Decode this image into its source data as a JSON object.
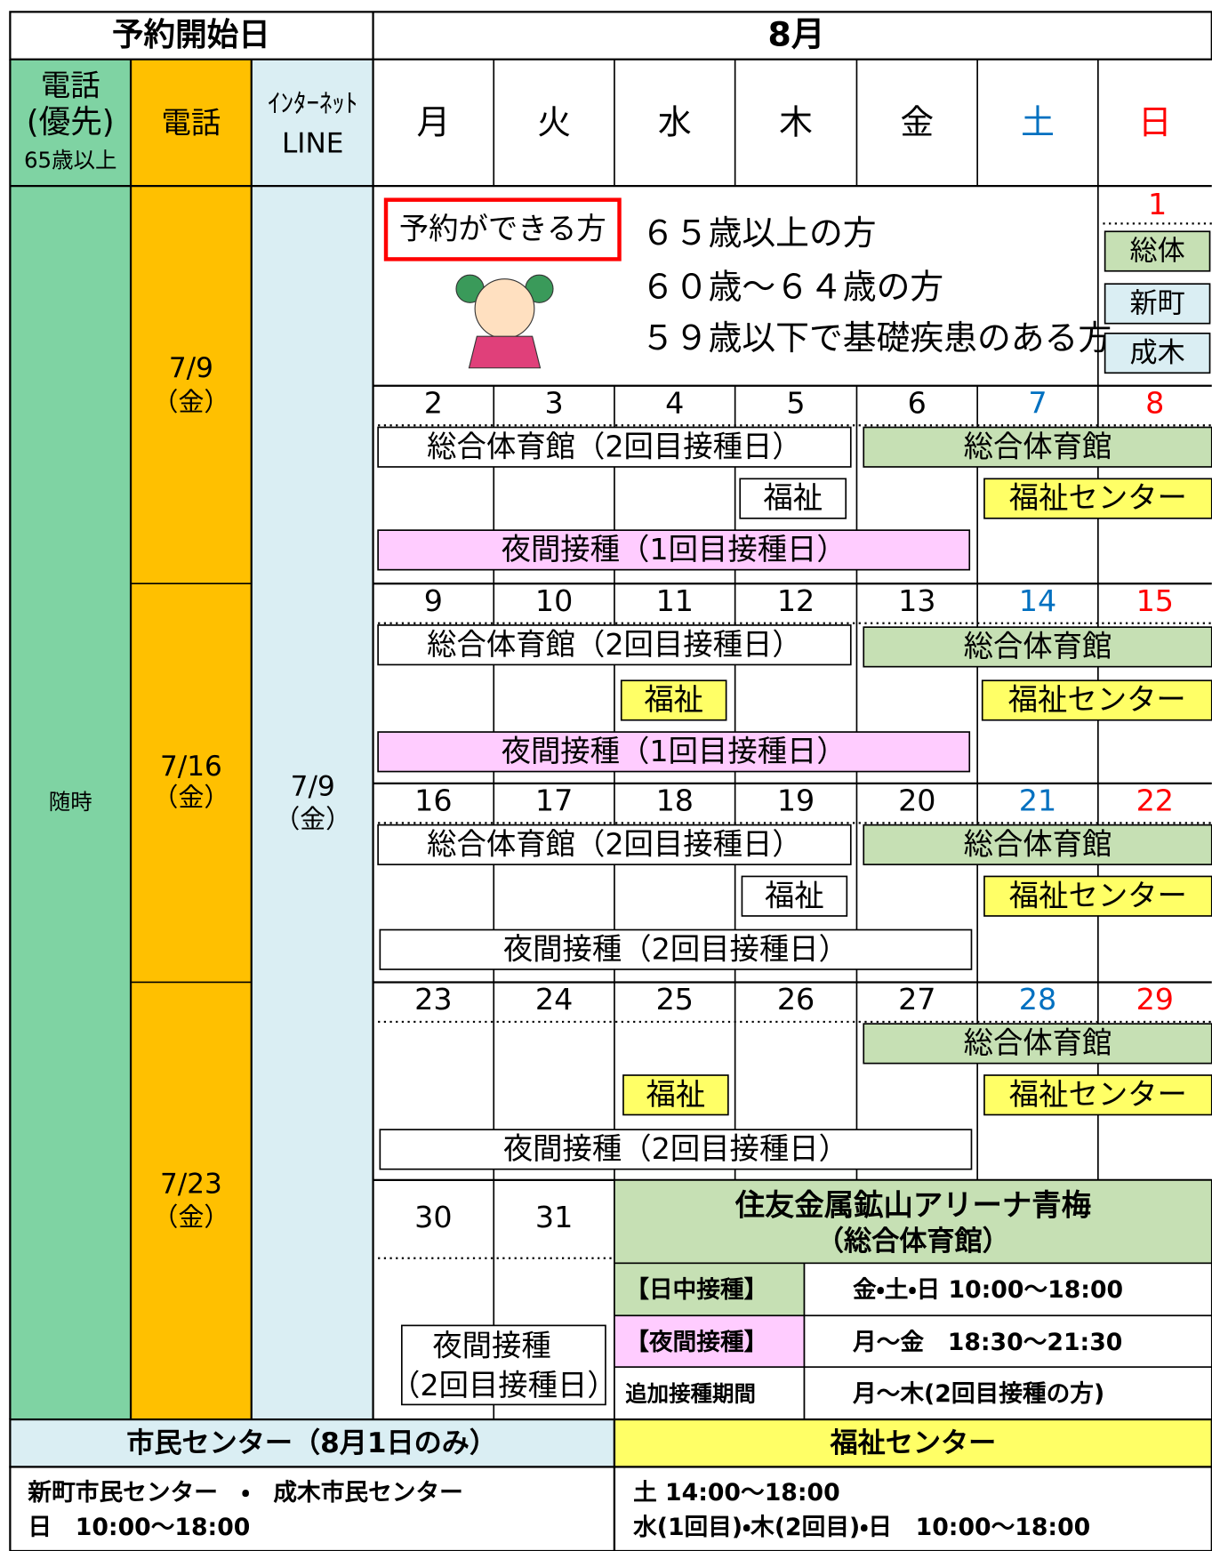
{
  "header": {
    "reservation_start": "予約開始日",
    "month": "8月"
  },
  "columns": {
    "phone_priority": [
      "電話",
      "(優先)",
      "65歳以上"
    ],
    "phone": "電話",
    "internet": [
      "ｲﾝﾀｰﾈｯﾄ",
      "LINE"
    ],
    "weekdays": [
      "月",
      "火",
      "水",
      "木",
      "金",
      "土",
      "日"
    ]
  },
  "phone_priority_date": "随時",
  "phone_dates": [
    [
      "7/9",
      "（金）"
    ],
    [
      "7/16",
      "（金）"
    ],
    [
      "7/23",
      "（金）"
    ]
  ],
  "internet_date": [
    "7/9",
    "（金）"
  ],
  "eligibility": {
    "label": "予約ができる方",
    "items": [
      "６５歳以上の方",
      "６０歳～６４歳の方",
      "５９歳以下で基礎疾患のある方"
    ]
  },
  "first_day": {
    "day": 1,
    "venues": [
      "総体",
      "新町",
      "成木"
    ]
  },
  "weeks": [
    {
      "days": [
        2,
        3,
        4,
        5,
        6,
        7,
        8
      ],
      "events": [
        "総合体育館（2回目接種日）",
        "総合体育館",
        "福祉",
        "福祉センター",
        "夜間接種（1回目接種日）"
      ]
    },
    {
      "days": [
        9,
        10,
        11,
        12,
        13,
        14,
        15
      ],
      "events": [
        "総合体育館（2回目接種日）",
        "総合体育館",
        "福祉",
        "福祉センター",
        "夜間接種（1回目接種日）"
      ]
    },
    {
      "days": [
        16,
        17,
        18,
        19,
        20,
        21,
        22
      ],
      "events": [
        "総合体育館（2回目接種日）",
        "総合体育館",
        "福祉",
        "福祉センター",
        "夜間接種（2回目接種日）"
      ]
    },
    {
      "days": [
        23,
        24,
        25,
        26,
        27,
        28,
        29
      ],
      "events": [
        "総合体育館",
        "福祉",
        "福祉センター",
        "夜間接種（2回目接種日）"
      ]
    }
  ],
  "last_week": {
    "days": [
      30,
      31
    ],
    "event": [
      "夜間接種",
      "（2回目接種日）"
    ]
  },
  "arena": {
    "name": "住友金属鉱山アリーナ青梅",
    "subtitle": "（総合体育館）",
    "schedule": [
      [
        "【日中接種】",
        "金・土・日 10:00～18:00"
      ],
      [
        "【夜間接種】",
        "月～金　18:30～21:30"
      ],
      [
        "追加接種期間",
        "月～木(2回目接種の方)"
      ]
    ]
  },
  "footer": {
    "civic": {
      "title": "市民センター（8月1日のみ）",
      "lines": [
        "新町市民センター　・　成木市民センター",
        "日　10:00～18:00"
      ]
    },
    "welfare": {
      "title": "福祉センター",
      "lines": [
        "土 14:00～18:00",
        "水(1回目)・木(2回目)・日　10:00～18:00"
      ]
    }
  }
}
